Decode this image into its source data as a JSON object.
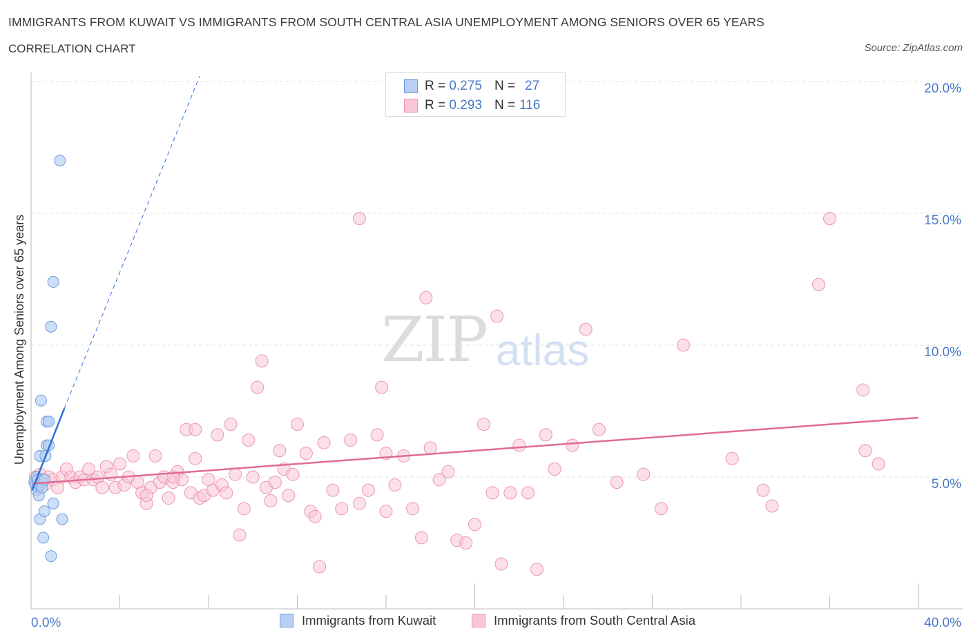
{
  "header": {
    "title": "IMMIGRANTS FROM KUWAIT VS IMMIGRANTS FROM SOUTH CENTRAL ASIA UNEMPLOYMENT AMONG SENIORS OVER 65 YEARS",
    "subtitle": "CORRELATION CHART",
    "source": "Source: ZipAtlas.com"
  },
  "watermark": {
    "zip": "ZIP",
    "atlas": "atlas"
  },
  "legend": {
    "rows": [
      {
        "r_label": "R =",
        "r_value": "0.275",
        "n_label": "N =",
        "n_value": "27"
      },
      {
        "r_label": "R =",
        "r_value": "0.293",
        "n_label": "N =",
        "n_value": "116"
      }
    ]
  },
  "colors": {
    "kuwait_fill": "#b8d0f3",
    "kuwait_stroke": "#6f9be0",
    "kuwait_line": "#2f6fd6",
    "sca_fill": "#f9c6d6",
    "sca_stroke": "#ec94b1",
    "sca_line": "#e06b96",
    "axis_text": "#4a78c9",
    "grid": "#e2e2e2"
  },
  "chart_data": {
    "type": "scatter",
    "ylabel": "Unemployment Among Seniors over 65 years",
    "xlim": [
      0,
      40
    ],
    "ylim": [
      0,
      20
    ],
    "x_tick_labels": [
      "0.0%",
      "40.0%"
    ],
    "y_ticks": [
      5,
      10,
      15,
      20
    ],
    "y_tick_labels": [
      "5.0%",
      "10.0%",
      "15.0%",
      "20.0%"
    ],
    "grid": true,
    "series": [
      {
        "name": "Immigrants from Kuwait",
        "points": [
          [
            0.15,
            4.8
          ],
          [
            0.2,
            4.7
          ],
          [
            0.25,
            5.0
          ],
          [
            0.25,
            4.5
          ],
          [
            0.3,
            4.6
          ],
          [
            0.3,
            4.9
          ],
          [
            0.35,
            4.3
          ],
          [
            0.4,
            4.7
          ],
          [
            0.4,
            5.8
          ],
          [
            0.4,
            3.4
          ],
          [
            0.45,
            7.9
          ],
          [
            0.5,
            4.8
          ],
          [
            0.5,
            4.6
          ],
          [
            0.55,
            2.7
          ],
          [
            0.6,
            3.7
          ],
          [
            0.6,
            4.9
          ],
          [
            0.65,
            5.8
          ],
          [
            0.7,
            6.2
          ],
          [
            0.7,
            7.1
          ],
          [
            0.8,
            7.1
          ],
          [
            0.8,
            6.2
          ],
          [
            0.9,
            2.0
          ],
          [
            0.9,
            10.7
          ],
          [
            1.0,
            12.4
          ],
          [
            1.0,
            4.0
          ],
          [
            1.3,
            17.0
          ],
          [
            1.4,
            3.4
          ]
        ],
        "trend": {
          "x": [
            0.05,
            1.5
          ],
          "y": [
            4.5,
            7.6
          ]
        },
        "trend_extension": {
          "x": [
            1.5,
            7.6
          ],
          "y": [
            7.6,
            20.2
          ]
        }
      },
      {
        "name": "Immigrants from South Central Asia",
        "points": [
          [
            0.2,
            5.0
          ],
          [
            0.3,
            4.8
          ],
          [
            0.4,
            5.1
          ],
          [
            0.5,
            4.9
          ],
          [
            0.6,
            4.7
          ],
          [
            0.8,
            5.0
          ],
          [
            1.0,
            4.9
          ],
          [
            1.2,
            4.6
          ],
          [
            1.4,
            5.0
          ],
          [
            1.6,
            5.3
          ],
          [
            1.8,
            5.0
          ],
          [
            2.0,
            4.8
          ],
          [
            2.2,
            5.0
          ],
          [
            2.4,
            4.9
          ],
          [
            2.6,
            5.3
          ],
          [
            2.8,
            4.9
          ],
          [
            3.0,
            5.0
          ],
          [
            3.2,
            4.6
          ],
          [
            3.4,
            5.4
          ],
          [
            3.6,
            5.1
          ],
          [
            3.8,
            4.6
          ],
          [
            4.0,
            5.5
          ],
          [
            4.2,
            4.7
          ],
          [
            4.4,
            5.0
          ],
          [
            4.6,
            5.8
          ],
          [
            4.8,
            4.8
          ],
          [
            5.0,
            4.4
          ],
          [
            5.2,
            4.0
          ],
          [
            5.4,
            4.6
          ],
          [
            5.6,
            5.8
          ],
          [
            5.8,
            4.8
          ],
          [
            6.0,
            5.0
          ],
          [
            6.2,
            4.2
          ],
          [
            6.4,
            4.8
          ],
          [
            6.6,
            5.2
          ],
          [
            6.8,
            4.9
          ],
          [
            7.0,
            6.8
          ],
          [
            7.2,
            4.4
          ],
          [
            7.4,
            5.7
          ],
          [
            7.6,
            4.2
          ],
          [
            7.8,
            4.3
          ],
          [
            8.0,
            4.9
          ],
          [
            8.2,
            4.5
          ],
          [
            8.4,
            6.6
          ],
          [
            8.6,
            4.7
          ],
          [
            8.8,
            4.4
          ],
          [
            9.0,
            7.0
          ],
          [
            9.2,
            5.1
          ],
          [
            9.4,
            2.8
          ],
          [
            9.6,
            3.8
          ],
          [
            9.8,
            6.4
          ],
          [
            10.0,
            5.0
          ],
          [
            10.2,
            8.4
          ],
          [
            10.4,
            9.4
          ],
          [
            10.6,
            4.6
          ],
          [
            10.8,
            4.1
          ],
          [
            11.0,
            4.8
          ],
          [
            11.2,
            6.0
          ],
          [
            11.4,
            5.3
          ],
          [
            11.6,
            4.3
          ],
          [
            11.8,
            5.1
          ],
          [
            12.0,
            7.0
          ],
          [
            12.4,
            5.9
          ],
          [
            12.6,
            3.7
          ],
          [
            12.8,
            3.5
          ],
          [
            13.0,
            1.6
          ],
          [
            13.2,
            6.3
          ],
          [
            13.6,
            4.5
          ],
          [
            14.0,
            3.8
          ],
          [
            14.4,
            6.4
          ],
          [
            14.8,
            4.0
          ],
          [
            15.2,
            4.5
          ],
          [
            15.6,
            6.6
          ],
          [
            16.0,
            3.7
          ],
          [
            16.4,
            4.7
          ],
          [
            16.8,
            5.8
          ],
          [
            17.2,
            3.8
          ],
          [
            17.6,
            2.7
          ],
          [
            18.0,
            6.1
          ],
          [
            18.4,
            4.9
          ],
          [
            18.8,
            5.2
          ],
          [
            19.2,
            2.6
          ],
          [
            19.6,
            2.5
          ],
          [
            20.0,
            3.2
          ],
          [
            20.4,
            7.0
          ],
          [
            20.8,
            4.4
          ],
          [
            21.2,
            1.7
          ],
          [
            21.6,
            4.4
          ],
          [
            22.0,
            6.2
          ],
          [
            22.4,
            4.4
          ],
          [
            22.8,
            1.5
          ],
          [
            23.2,
            6.6
          ],
          [
            23.6,
            5.3
          ],
          [
            24.4,
            6.2
          ],
          [
            25.0,
            10.6
          ],
          [
            25.6,
            6.8
          ],
          [
            26.4,
            4.8
          ],
          [
            27.6,
            5.1
          ],
          [
            28.4,
            3.8
          ],
          [
            29.4,
            10.0
          ],
          [
            31.6,
            5.7
          ],
          [
            33.0,
            4.5
          ],
          [
            33.4,
            3.9
          ],
          [
            35.5,
            12.3
          ],
          [
            37.5,
            8.3
          ],
          [
            37.6,
            6.0
          ],
          [
            38.2,
            5.5
          ],
          [
            14.8,
            14.8
          ],
          [
            36.0,
            14.8
          ],
          [
            17.8,
            11.8
          ],
          [
            21.0,
            11.1
          ],
          [
            7.4,
            6.8
          ],
          [
            15.8,
            8.4
          ],
          [
            16.0,
            5.9
          ],
          [
            5.2,
            4.3
          ],
          [
            6.4,
            5.0
          ]
        ],
        "trend": {
          "x": [
            0.05,
            40
          ],
          "y": [
            4.75,
            7.25
          ]
        }
      }
    ]
  },
  "bottom_legend": {
    "kuwait_label": "Immigrants from Kuwait",
    "sca_label": "Immigrants from South Central Asia"
  }
}
